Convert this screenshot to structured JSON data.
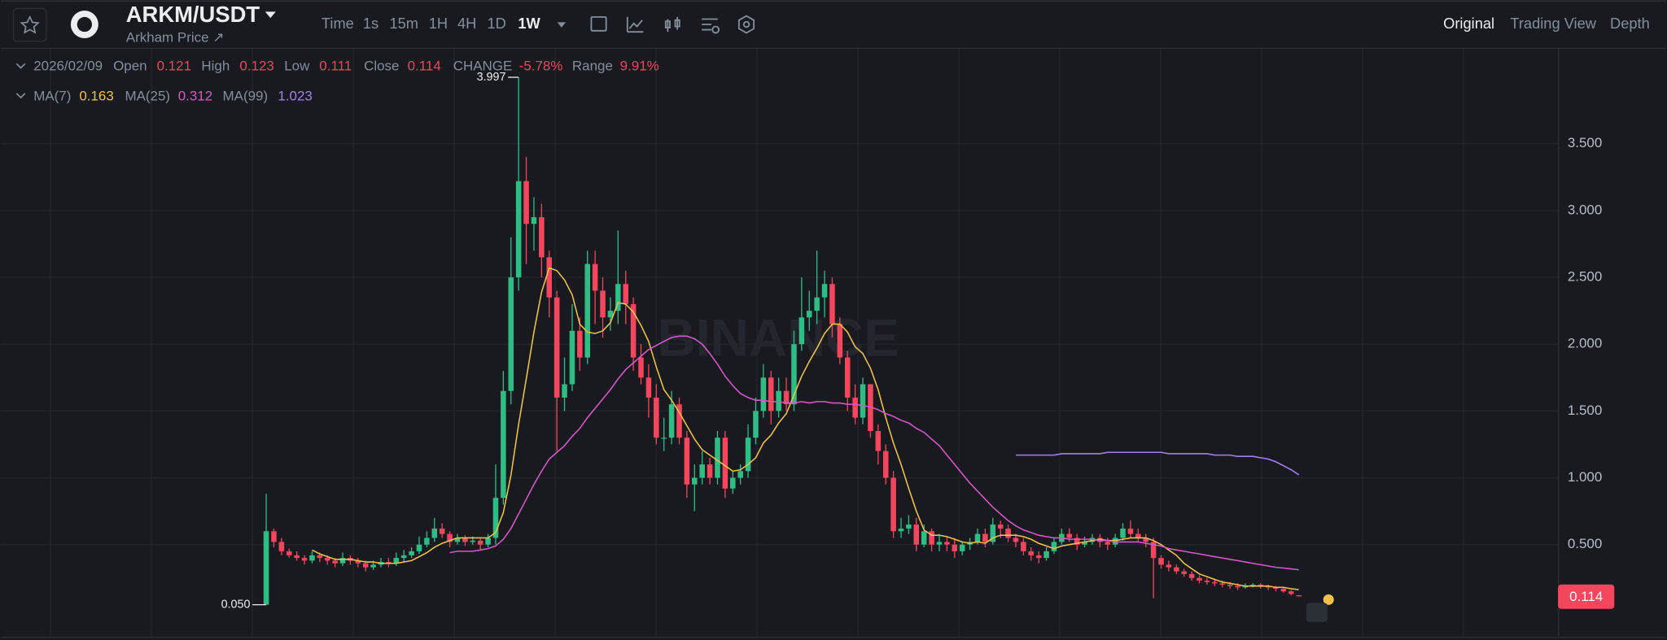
{
  "header": {
    "symbol": "ARKM/USDT",
    "subtitle": "Arkham Price ↗",
    "intervals": [
      "Time",
      "1s",
      "15m",
      "1H",
      "4H",
      "1D",
      "1W"
    ],
    "views": [
      "Original",
      "Trading View",
      "Depth"
    ]
  },
  "legend": {
    "date": "2026/02/09",
    "open_label": "Open",
    "high_label": "High",
    "low_label": "Low",
    "close_label": "Close",
    "change_label": "CHANGE",
    "change": "-5.78%",
    "range_label": "Range",
    "range": "9.91%"
  },
  "chart_data": {
    "type": "candlestick",
    "watermark": "BINANCE",
    "up_color": "#2ebd85",
    "down_color": "#f6465d",
    "ylim": [
      -0.19,
      4.21
    ],
    "yticks": [
      {
        "value": 0.5,
        "label": "0.500"
      },
      {
        "value": 1,
        "label": "1.000"
      },
      {
        "value": 1.5,
        "label": "1.500"
      },
      {
        "value": 2,
        "label": "2.000"
      },
      {
        "value": 2.5,
        "label": "2.500"
      },
      {
        "value": 3,
        "label": "3.000"
      },
      {
        "value": 3.5,
        "label": "3.500"
      }
    ],
    "low_marker": {
      "value": 0.05,
      "label": "0.050"
    },
    "open": [
      0.05,
      0.6,
      0.52,
      0.45,
      0.42,
      0.4,
      0.38,
      0.42,
      0.4,
      0.38,
      0.36,
      0.4,
      0.38,
      0.36,
      0.33,
      0.35,
      0.37,
      0.36,
      0.4,
      0.42,
      0.45,
      0.5,
      0.55,
      0.62,
      0.58,
      0.52,
      0.55,
      0.52,
      0.53,
      0.5,
      0.55,
      0.85,
      1.65,
      2.5,
      3.22,
      2.9,
      2.95,
      2.65,
      2.35,
      1.6,
      1.7,
      2.1,
      1.9,
      2.6,
      2.4,
      2.2,
      2.25,
      2.45,
      2.3,
      1.9,
      1.75,
      1.6,
      1.3,
      1.3,
      1.55,
      1.3,
      0.95,
      1.0,
      1.1,
      1.0,
      1.3,
      0.92,
      1.0,
      1.05,
      1.3,
      1.5,
      1.75,
      1.5,
      1.65,
      1.55,
      2.0,
      2.2,
      2.25,
      2.35,
      2.45,
      2.15,
      1.9,
      1.6,
      1.45,
      1.7,
      1.35,
      1.2,
      1.0,
      0.6,
      0.62,
      0.65,
      0.5,
      0.6,
      0.5,
      0.52,
      0.5,
      0.45,
      0.5,
      0.52,
      0.58,
      0.52,
      0.65,
      0.62,
      0.55,
      0.52,
      0.45,
      0.42,
      0.4,
      0.45,
      0.52,
      0.58,
      0.55,
      0.5,
      0.52,
      0.55,
      0.52,
      0.5,
      0.55,
      0.62,
      0.58,
      0.55,
      0.52,
      0.4,
      0.35,
      0.33,
      0.3,
      0.28,
      0.25,
      0.23,
      0.22,
      0.21,
      0.2,
      0.19,
      0.18,
      0.19,
      0.2,
      0.19,
      0.18,
      0.17,
      0.15,
      0.121
    ],
    "high": [
      0.88,
      0.62,
      0.55,
      0.47,
      0.45,
      0.42,
      0.45,
      0.44,
      0.42,
      0.4,
      0.44,
      0.42,
      0.4,
      0.38,
      0.38,
      0.4,
      0.4,
      0.44,
      0.46,
      0.48,
      0.56,
      0.6,
      0.7,
      0.66,
      0.6,
      0.58,
      0.57,
      0.56,
      0.55,
      0.58,
      1.1,
      1.8,
      2.8,
      3.997,
      3.4,
      3.1,
      3.05,
      2.7,
      2.4,
      1.9,
      2.3,
      2.2,
      2.7,
      2.7,
      2.5,
      2.35,
      2.85,
      2.55,
      2.35,
      2.0,
      1.85,
      1.7,
      1.45,
      1.65,
      1.6,
      1.35,
      1.1,
      1.2,
      1.15,
      1.35,
      1.35,
      1.05,
      1.1,
      1.4,
      1.6,
      1.85,
      1.8,
      1.75,
      1.75,
      2.1,
      2.5,
      2.4,
      2.7,
      2.55,
      2.5,
      2.2,
      1.95,
      1.7,
      1.75,
      1.7,
      1.4,
      1.25,
      1.05,
      0.7,
      0.72,
      0.7,
      0.65,
      0.62,
      0.58,
      0.56,
      0.55,
      0.52,
      0.55,
      0.62,
      0.62,
      0.7,
      0.68,
      0.65,
      0.58,
      0.55,
      0.48,
      0.45,
      0.48,
      0.55,
      0.62,
      0.62,
      0.58,
      0.56,
      0.58,
      0.58,
      0.55,
      0.58,
      0.66,
      0.68,
      0.62,
      0.58,
      0.55,
      0.42,
      0.38,
      0.35,
      0.32,
      0.3,
      0.27,
      0.25,
      0.24,
      0.23,
      0.22,
      0.21,
      0.21,
      0.21,
      0.21,
      0.2,
      0.19,
      0.18,
      0.16,
      0.123
    ],
    "low": [
      0.05,
      0.48,
      0.42,
      0.4,
      0.38,
      0.35,
      0.36,
      0.37,
      0.35,
      0.33,
      0.34,
      0.35,
      0.33,
      0.3,
      0.31,
      0.33,
      0.33,
      0.34,
      0.37,
      0.4,
      0.43,
      0.48,
      0.52,
      0.55,
      0.48,
      0.5,
      0.49,
      0.5,
      0.46,
      0.48,
      0.5,
      0.8,
      1.55,
      2.4,
      2.6,
      2.7,
      2.5,
      2.2,
      1.2,
      1.5,
      1.65,
      1.8,
      1.85,
      2.15,
      2.05,
      2.1,
      2.15,
      2.15,
      1.8,
      1.7,
      1.45,
      1.25,
      1.2,
      1.25,
      1.25,
      0.85,
      0.75,
      0.95,
      0.95,
      0.95,
      0.85,
      0.88,
      0.95,
      1.0,
      1.25,
      1.45,
      1.4,
      1.45,
      1.5,
      1.5,
      1.95,
      2.1,
      2.15,
      2.2,
      2.05,
      1.85,
      1.5,
      1.4,
      1.4,
      1.3,
      1.1,
      0.95,
      0.55,
      0.55,
      0.58,
      0.45,
      0.48,
      0.45,
      0.45,
      0.45,
      0.4,
      0.42,
      0.46,
      0.5,
      0.48,
      0.5,
      0.55,
      0.52,
      0.48,
      0.42,
      0.38,
      0.36,
      0.38,
      0.43,
      0.5,
      0.52,
      0.46,
      0.48,
      0.5,
      0.48,
      0.46,
      0.48,
      0.53,
      0.55,
      0.52,
      0.48,
      0.1,
      0.32,
      0.3,
      0.28,
      0.26,
      0.23,
      0.21,
      0.2,
      0.19,
      0.18,
      0.17,
      0.16,
      0.17,
      0.18,
      0.17,
      0.16,
      0.15,
      0.14,
      0.12,
      0.111
    ],
    "close": [
      0.6,
      0.52,
      0.45,
      0.42,
      0.4,
      0.38,
      0.42,
      0.4,
      0.38,
      0.36,
      0.4,
      0.38,
      0.36,
      0.33,
      0.35,
      0.37,
      0.36,
      0.4,
      0.42,
      0.45,
      0.5,
      0.55,
      0.62,
      0.58,
      0.52,
      0.55,
      0.52,
      0.53,
      0.5,
      0.55,
      0.85,
      1.65,
      2.5,
      3.22,
      2.9,
      2.95,
      2.65,
      2.35,
      1.6,
      1.7,
      2.1,
      1.9,
      2.6,
      2.4,
      2.2,
      2.25,
      2.45,
      2.3,
      1.9,
      1.75,
      1.6,
      1.3,
      1.3,
      1.55,
      1.3,
      0.95,
      1.0,
      1.1,
      1.0,
      1.3,
      0.92,
      1.0,
      1.05,
      1.3,
      1.5,
      1.75,
      1.5,
      1.65,
      1.55,
      2.0,
      2.2,
      2.25,
      2.35,
      2.45,
      2.15,
      1.9,
      1.6,
      1.45,
      1.7,
      1.35,
      1.2,
      1.0,
      0.6,
      0.62,
      0.65,
      0.5,
      0.6,
      0.5,
      0.52,
      0.5,
      0.45,
      0.5,
      0.52,
      0.58,
      0.52,
      0.65,
      0.62,
      0.55,
      0.52,
      0.45,
      0.42,
      0.4,
      0.45,
      0.52,
      0.58,
      0.55,
      0.5,
      0.52,
      0.55,
      0.52,
      0.5,
      0.55,
      0.62,
      0.58,
      0.55,
      0.52,
      0.4,
      0.35,
      0.33,
      0.3,
      0.28,
      0.25,
      0.23,
      0.22,
      0.21,
      0.2,
      0.19,
      0.18,
      0.19,
      0.2,
      0.19,
      0.18,
      0.17,
      0.15,
      0.131,
      0.114
    ],
    "series": [
      {
        "name": "MA(7)",
        "color": "#f0c14b",
        "values": [
          null,
          null,
          null,
          null,
          null,
          null,
          0.46,
          0.43,
          0.41,
          0.39,
          0.39,
          0.39,
          0.38,
          0.37,
          0.37,
          0.36,
          0.36,
          0.36,
          0.37,
          0.38,
          0.41,
          0.44,
          0.48,
          0.51,
          0.53,
          0.55,
          0.55,
          0.55,
          0.55,
          0.55,
          0.59,
          0.74,
          1.02,
          1.4,
          1.74,
          2.09,
          2.39,
          2.57,
          2.55,
          2.48,
          2.37,
          2.15,
          2.09,
          2.08,
          2.1,
          2.16,
          2.31,
          2.3,
          2.24,
          2.14,
          2.02,
          1.83,
          1.66,
          1.58,
          1.49,
          1.39,
          1.29,
          1.21,
          1.17,
          1.13,
          1.09,
          1.05,
          1.06,
          1.1,
          1.15,
          1.26,
          1.32,
          1.41,
          1.48,
          1.62,
          1.76,
          1.87,
          1.97,
          2.08,
          2.15,
          2.15,
          2.09,
          1.98,
          1.93,
          1.82,
          1.66,
          1.45,
          1.26,
          1.1,
          0.92,
          0.75,
          0.61,
          0.57,
          0.57,
          0.56,
          0.54,
          0.52,
          0.51,
          0.52,
          0.51,
          0.55,
          0.57,
          0.57,
          0.57,
          0.56,
          0.54,
          0.51,
          0.49,
          0.47,
          0.49,
          0.5,
          0.51,
          0.52,
          0.53,
          0.54,
          0.53,
          0.53,
          0.54,
          0.55,
          0.55,
          0.55,
          0.53,
          0.5,
          0.46,
          0.42,
          0.36,
          0.32,
          0.28,
          0.26,
          0.24,
          0.22,
          0.21,
          0.2,
          0.19,
          0.19,
          0.19,
          0.19,
          0.18,
          0.18,
          0.17,
          0.163
        ]
      },
      {
        "name": "MA(25)",
        "color": "#d957c8",
        "values": [
          null,
          null,
          null,
          null,
          null,
          null,
          null,
          null,
          null,
          null,
          null,
          null,
          null,
          null,
          null,
          null,
          null,
          null,
          null,
          null,
          null,
          null,
          null,
          null,
          0.44,
          0.45,
          0.45,
          0.45,
          0.46,
          0.47,
          0.49,
          0.54,
          0.62,
          0.73,
          0.84,
          0.95,
          1.05,
          1.14,
          1.19,
          1.24,
          1.31,
          1.37,
          1.45,
          1.52,
          1.59,
          1.66,
          1.74,
          1.81,
          1.86,
          1.91,
          1.96,
          1.99,
          2.02,
          2.05,
          2.06,
          2.06,
          2.04,
          2.0,
          1.93,
          1.85,
          1.76,
          1.69,
          1.63,
          1.6,
          1.58,
          1.58,
          1.57,
          1.57,
          1.56,
          1.56,
          1.57,
          1.56,
          1.57,
          1.57,
          1.56,
          1.56,
          1.55,
          1.55,
          1.54,
          1.53,
          1.51,
          1.48,
          1.46,
          1.43,
          1.41,
          1.37,
          1.34,
          1.29,
          1.24,
          1.17,
          1.1,
          1.03,
          0.96,
          0.9,
          0.84,
          0.78,
          0.73,
          0.68,
          0.64,
          0.61,
          0.59,
          0.57,
          0.56,
          0.55,
          0.55,
          0.54,
          0.54,
          0.54,
          0.54,
          0.53,
          0.53,
          0.52,
          0.52,
          0.52,
          0.52,
          0.51,
          0.5,
          0.49,
          0.47,
          0.46,
          0.45,
          0.44,
          0.43,
          0.42,
          0.41,
          0.4,
          0.39,
          0.38,
          0.37,
          0.36,
          0.35,
          0.34,
          0.33,
          0.325,
          0.318,
          0.312
        ]
      },
      {
        "name": "MA(99)",
        "color": "#a77ff2",
        "values": [
          null,
          null,
          null,
          null,
          null,
          null,
          null,
          null,
          null,
          null,
          null,
          null,
          null,
          null,
          null,
          null,
          null,
          null,
          null,
          null,
          null,
          null,
          null,
          null,
          null,
          null,
          null,
          null,
          null,
          null,
          null,
          null,
          null,
          null,
          null,
          null,
          null,
          null,
          null,
          null,
          null,
          null,
          null,
          null,
          null,
          null,
          null,
          null,
          null,
          null,
          null,
          null,
          null,
          null,
          null,
          null,
          null,
          null,
          null,
          null,
          null,
          null,
          null,
          null,
          null,
          null,
          null,
          null,
          null,
          null,
          null,
          null,
          null,
          null,
          null,
          null,
          null,
          null,
          null,
          null,
          null,
          null,
          null,
          null,
          null,
          null,
          null,
          null,
          null,
          null,
          null,
          null,
          null,
          null,
          null,
          null,
          null,
          null,
          1.17,
          1.17,
          1.17,
          1.17,
          1.17,
          1.17,
          1.18,
          1.18,
          1.18,
          1.18,
          1.18,
          1.18,
          1.19,
          1.19,
          1.19,
          1.19,
          1.19,
          1.19,
          1.19,
          1.19,
          1.18,
          1.18,
          1.18,
          1.18,
          1.18,
          1.18,
          1.17,
          1.17,
          1.17,
          1.16,
          1.16,
          1.16,
          1.15,
          1.14,
          1.12,
          1.09,
          1.06,
          1.023
        ]
      }
    ]
  }
}
